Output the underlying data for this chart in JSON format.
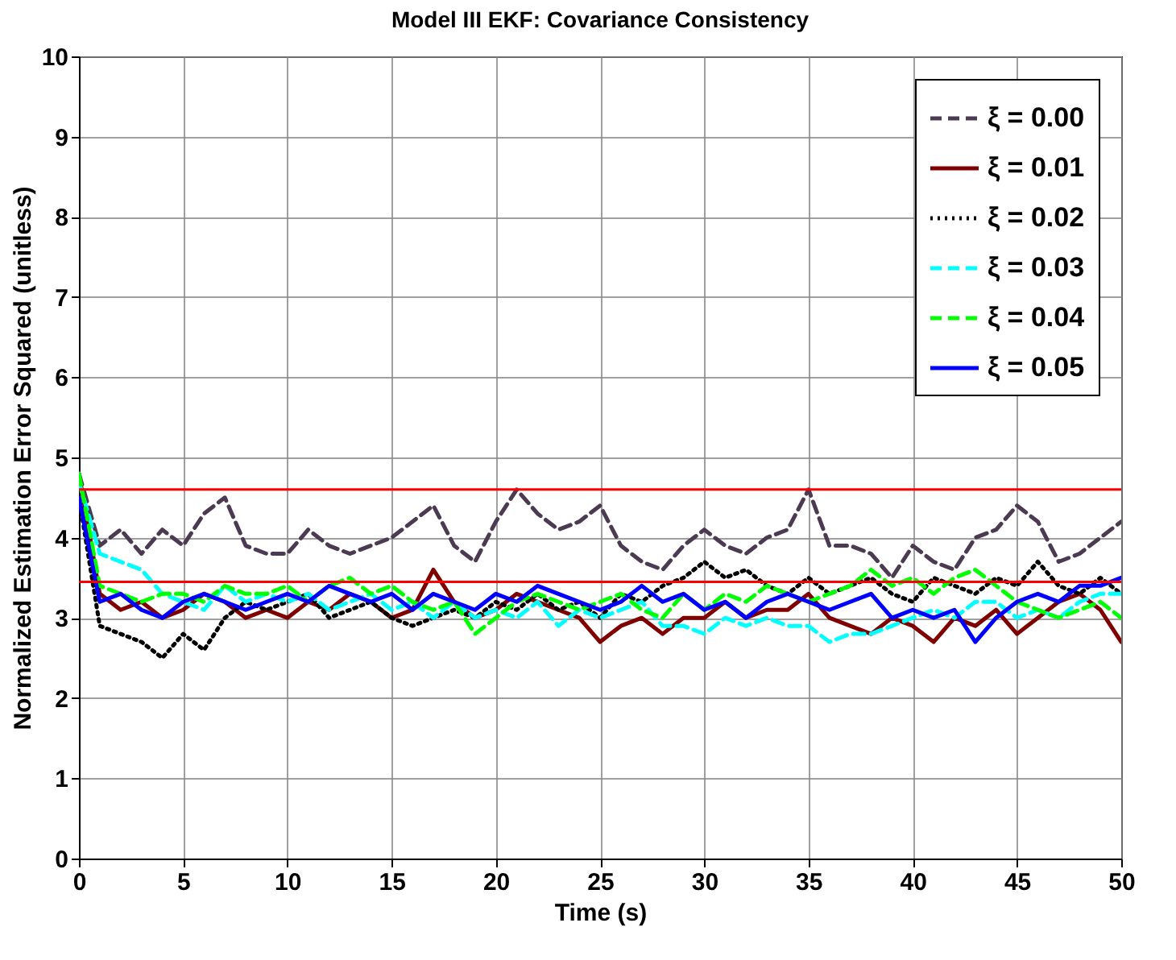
{
  "chart_data": {
    "type": "line",
    "title": "Model III EKF: Covariance Consistency",
    "xlabel": "Time (s)",
    "ylabel": "Normalized Estimation Error Squared (unitless)",
    "x": [
      0,
      1,
      2,
      3,
      4,
      5,
      6,
      7,
      8,
      9,
      10,
      11,
      12,
      13,
      14,
      15,
      16,
      17,
      18,
      19,
      20,
      21,
      22,
      23,
      24,
      25,
      26,
      27,
      28,
      29,
      30,
      31,
      32,
      33,
      34,
      35,
      36,
      37,
      38,
      39,
      40,
      41,
      42,
      43,
      44,
      45,
      46,
      47,
      48,
      49,
      50
    ],
    "series": [
      {
        "name": "ξ = 0.00",
        "color": "#4b3a52",
        "line_style": "dashed",
        "values": [
          4.8,
          3.9,
          4.1,
          3.8,
          4.1,
          3.9,
          4.3,
          4.5,
          3.9,
          3.8,
          3.8,
          4.1,
          3.9,
          3.8,
          3.9,
          4.0,
          4.2,
          4.4,
          3.9,
          3.7,
          4.2,
          4.6,
          4.3,
          4.1,
          4.2,
          4.4,
          3.9,
          3.7,
          3.6,
          3.9,
          4.1,
          3.9,
          3.8,
          4.0,
          4.1,
          4.6,
          3.9,
          3.9,
          3.8,
          3.5,
          3.9,
          3.7,
          3.6,
          4.0,
          4.1,
          4.4,
          4.2,
          3.7,
          3.8,
          4.0,
          4.2
        ]
      },
      {
        "name": "ξ = 0.01",
        "color": "#800000",
        "line_style": "solid",
        "values": [
          4.8,
          3.3,
          3.1,
          3.2,
          3.0,
          3.1,
          3.3,
          3.2,
          3.0,
          3.1,
          3.0,
          3.2,
          3.1,
          3.3,
          3.2,
          3.0,
          3.1,
          3.6,
          3.2,
          3.0,
          3.1,
          3.3,
          3.2,
          3.1,
          3.0,
          2.7,
          2.9,
          3.0,
          2.8,
          3.0,
          3.0,
          3.2,
          3.0,
          3.1,
          3.1,
          3.3,
          3.0,
          2.9,
          2.8,
          3.0,
          2.9,
          2.7,
          3.0,
          2.9,
          3.1,
          2.8,
          3.0,
          3.2,
          3.3,
          3.1,
          2.7
        ]
      },
      {
        "name": "ξ = 0.02",
        "color": "#000000",
        "line_style": "dotted",
        "values": [
          4.5,
          2.9,
          2.8,
          2.7,
          2.5,
          2.8,
          2.6,
          3.0,
          3.2,
          3.1,
          3.2,
          3.3,
          3.0,
          3.1,
          3.2,
          3.0,
          2.9,
          3.0,
          3.1,
          3.0,
          3.2,
          3.1,
          3.3,
          3.1,
          3.2,
          3.0,
          3.3,
          3.2,
          3.4,
          3.5,
          3.7,
          3.5,
          3.6,
          3.4,
          3.3,
          3.5,
          3.3,
          3.4,
          3.5,
          3.3,
          3.2,
          3.5,
          3.4,
          3.3,
          3.5,
          3.4,
          3.7,
          3.4,
          3.3,
          3.5,
          3.3
        ]
      },
      {
        "name": "ξ = 0.03",
        "color": "#00ffff",
        "line_style": "dashed",
        "values": [
          4.7,
          3.8,
          3.7,
          3.6,
          3.3,
          3.2,
          3.1,
          3.4,
          3.2,
          3.3,
          3.2,
          3.3,
          3.1,
          3.2,
          3.3,
          3.1,
          3.2,
          3.0,
          3.2,
          3.0,
          3.1,
          3.0,
          3.2,
          2.9,
          3.1,
          3.0,
          3.1,
          3.2,
          2.9,
          2.9,
          2.8,
          3.0,
          2.9,
          3.0,
          2.9,
          2.9,
          2.7,
          2.8,
          2.8,
          2.9,
          3.0,
          3.1,
          3.0,
          3.2,
          3.2,
          3.0,
          3.1,
          3.0,
          3.2,
          3.3,
          3.3
        ]
      },
      {
        "name": "ξ = 0.04",
        "color": "#00ff00",
        "line_style": "dashed",
        "values": [
          4.8,
          3.4,
          3.3,
          3.2,
          3.3,
          3.3,
          3.2,
          3.4,
          3.3,
          3.3,
          3.4,
          3.2,
          3.4,
          3.5,
          3.3,
          3.4,
          3.2,
          3.1,
          3.2,
          2.8,
          3.0,
          3.2,
          3.3,
          3.2,
          3.1,
          3.2,
          3.3,
          3.1,
          3.0,
          3.3,
          3.1,
          3.3,
          3.2,
          3.4,
          3.3,
          3.2,
          3.3,
          3.4,
          3.6,
          3.4,
          3.5,
          3.3,
          3.5,
          3.6,
          3.4,
          3.2,
          3.1,
          3.0,
          3.1,
          3.2,
          3.0
        ]
      },
      {
        "name": "ξ = 0.05",
        "color": "#0000ff",
        "line_style": "solid",
        "values": [
          4.5,
          3.2,
          3.3,
          3.1,
          3.0,
          3.2,
          3.3,
          3.2,
          3.1,
          3.2,
          3.3,
          3.2,
          3.4,
          3.3,
          3.2,
          3.3,
          3.1,
          3.3,
          3.2,
          3.1,
          3.3,
          3.2,
          3.4,
          3.3,
          3.2,
          3.1,
          3.2,
          3.4,
          3.2,
          3.3,
          3.1,
          3.2,
          3.0,
          3.2,
          3.3,
          3.2,
          3.1,
          3.2,
          3.3,
          3.0,
          3.1,
          3.0,
          3.1,
          2.7,
          3.0,
          3.2,
          3.3,
          3.2,
          3.4,
          3.4,
          3.5
        ]
      }
    ],
    "ref_lines": [
      {
        "axis": "y",
        "value": 4.6,
        "color": "#ff0000"
      },
      {
        "axis": "y",
        "value": 3.45,
        "color": "#ff0000"
      }
    ],
    "xlim": [
      0,
      50
    ],
    "xticks": [
      0,
      5,
      10,
      15,
      20,
      25,
      30,
      35,
      40,
      45,
      50
    ],
    "ylim": [
      0,
      10
    ],
    "yticks": [
      0,
      1,
      2,
      3,
      4,
      5,
      6,
      7,
      8,
      9,
      10
    ],
    "grid": true,
    "legend": "top right"
  }
}
